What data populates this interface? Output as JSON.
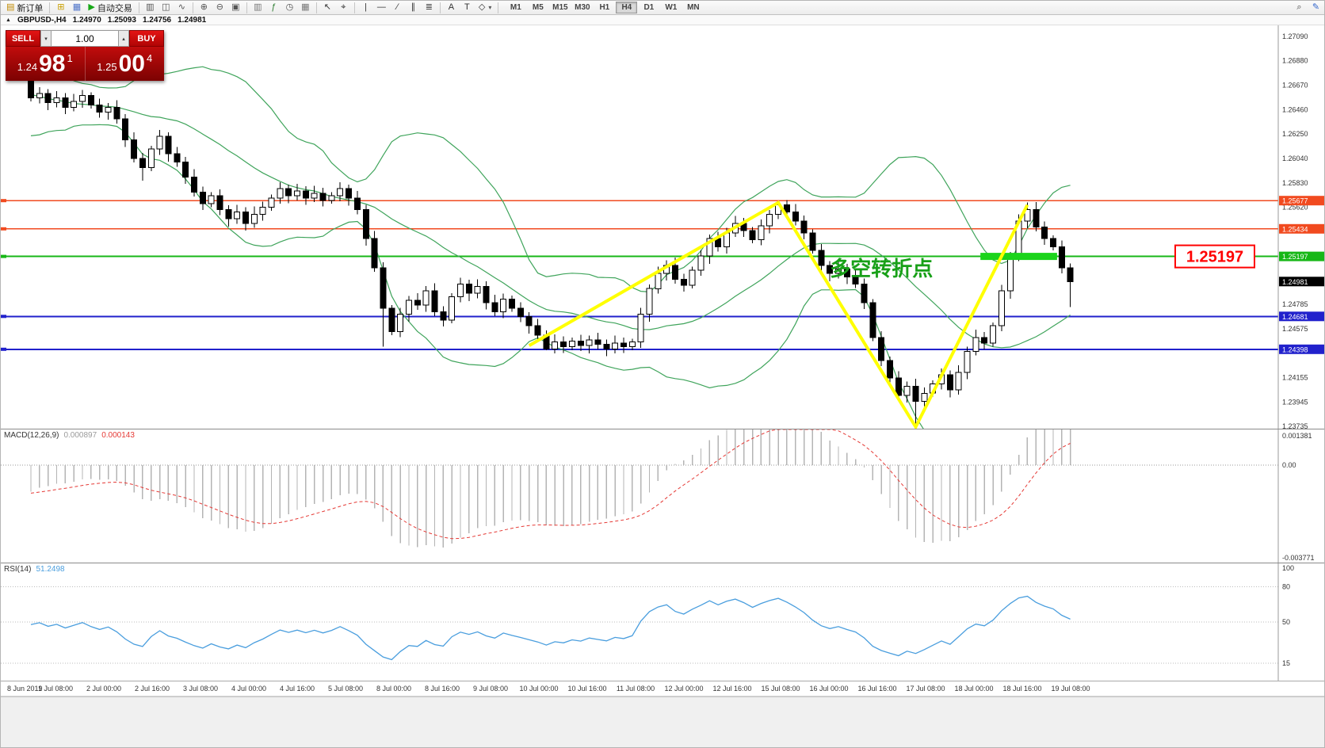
{
  "toolbar": {
    "groups": [
      {
        "items": [
          {
            "name": "new-order-button",
            "glyph": "▤",
            "glyph_color": "#c08a00",
            "label": "新订单"
          }
        ]
      },
      {
        "items": [
          {
            "name": "new-chart-button",
            "glyph": "⊞",
            "glyph_color": "#caa006"
          },
          {
            "name": "profiles-button",
            "glyph": "▦",
            "glyph_color": "#4f74c9"
          },
          {
            "name": "autotrading-button",
            "glyph": "▶",
            "glyph_color": "#17a817",
            "label": "自动交易"
          }
        ]
      },
      {
        "items": [
          {
            "name": "bar-chart-button",
            "glyph": "▥",
            "glyph_color": "#555555"
          },
          {
            "name": "candlestick-chart-button",
            "glyph": "◫",
            "glyph_color": "#555555"
          },
          {
            "name": "line-chart-button",
            "glyph": "∿",
            "glyph_color": "#555555"
          }
        ]
      },
      {
        "items": [
          {
            "name": "zoom-in-button",
            "glyph": "⊕",
            "glyph_color": "#555555"
          },
          {
            "name": "zoom-out-button",
            "glyph": "⊖",
            "glyph_color": "#555555"
          },
          {
            "name": "tile-windows-button",
            "glyph": "▣",
            "glyph_color": "#555555"
          }
        ]
      },
      {
        "items": [
          {
            "name": "navigator-button",
            "glyph": "▥",
            "glyph_color": "#777777"
          },
          {
            "name": "indicators-button",
            "glyph": "ƒ",
            "glyph_color": "#2e7d32"
          },
          {
            "name": "periods-button",
            "glyph": "◷",
            "glyph_color": "#555555"
          },
          {
            "name": "templates-button",
            "glyph": "▦",
            "glyph_color": "#777777"
          }
        ]
      },
      {
        "items": [
          {
            "name": "cursor-button",
            "glyph": "↖",
            "glyph_color": "#333333"
          },
          {
            "name": "crosshair-button",
            "glyph": "⌖",
            "glyph_color": "#333333"
          }
        ]
      },
      {
        "items": [
          {
            "name": "vertical-line-button",
            "glyph": "|",
            "glyph_color": "#333333"
          },
          {
            "name": "horizontal-line-button",
            "glyph": "—",
            "glyph_color": "#333333"
          },
          {
            "name": "trendline-button",
            "glyph": "∕",
            "glyph_color": "#333333"
          },
          {
            "name": "channel-button",
            "glyph": "∥",
            "glyph_color": "#333333"
          },
          {
            "name": "fibonacci-button",
            "glyph": "≣",
            "glyph_color": "#333333"
          }
        ]
      },
      {
        "items": [
          {
            "name": "text-button",
            "glyph": "A",
            "glyph_color": "#333333"
          },
          {
            "name": "label-button",
            "glyph": "T",
            "glyph_color": "#333333"
          },
          {
            "name": "arrows-button",
            "glyph": "◇",
            "glyph_color": "#333333",
            "dropdown": true
          }
        ]
      }
    ],
    "timeframes": [
      {
        "name": "tf-m1",
        "label": "M1"
      },
      {
        "name": "tf-m5",
        "label": "M5"
      },
      {
        "name": "tf-m15",
        "label": "M15"
      },
      {
        "name": "tf-m30",
        "label": "M30"
      },
      {
        "name": "tf-h1",
        "label": "H1"
      },
      {
        "name": "tf-h4",
        "label": "H4",
        "active": true
      },
      {
        "name": "tf-d1",
        "label": "D1"
      },
      {
        "name": "tf-w1",
        "label": "W1"
      },
      {
        "name": "tf-mn",
        "label": "MN"
      }
    ],
    "right_items": [
      {
        "name": "search-button",
        "glyph": "⌕",
        "glyph_color": "#444444"
      },
      {
        "name": "metaeditor-button",
        "glyph": "✎",
        "glyph_color": "#3366cc"
      }
    ]
  },
  "infobar": {
    "collapse_glyph": "▲",
    "symbol": "GBPUSD-,H4",
    "open": "1.24970",
    "high": "1.25093",
    "low": "1.24756",
    "close": "1.24981"
  },
  "trade_panel": {
    "sell_label": "SELL",
    "buy_label": "BUY",
    "volume": "1.00",
    "spin_down": "▾",
    "spin_up": "▴",
    "sell_price": {
      "prefix": "1.24",
      "big": "98",
      "sup": "1"
    },
    "buy_price": {
      "prefix": "1.25",
      "big": "00",
      "sup": "4"
    }
  },
  "chart_data": {
    "type": "candlestick",
    "symbol": "GBPUSD",
    "period": "H4",
    "main": {
      "price_axis": {
        "top": 1.27185,
        "bottom": 1.23715,
        "ticks": [
          "1.27090",
          "1.26880",
          "1.26670",
          "1.26460",
          "1.26250",
          "1.26040",
          "1.25830",
          "1.25620",
          "1.24785",
          "1.24575",
          "1.24155",
          "1.23945",
          "1.23735"
        ]
      },
      "candles": {
        "first_open": 1.2678,
        "history_closes": [
          1.269,
          1.2685,
          1.2695,
          1.268,
          1.2675,
          1.2685,
          1.267,
          1.266,
          1.2665,
          1.2655,
          1.265,
          1.266,
          1.2645,
          1.264,
          1.265,
          1.2635,
          1.264,
          1.263,
          1.2645,
          1.2655
        ],
        "closes": [
          1.2656,
          1.266,
          1.2652,
          1.2656,
          1.2648,
          1.2653,
          1.2658,
          1.265,
          1.2644,
          1.2648,
          1.2638,
          1.262,
          1.2604,
          1.2596,
          1.2612,
          1.2623,
          1.2608,
          1.2601,
          1.2588,
          1.2575,
          1.2565,
          1.2572,
          1.256,
          1.2552,
          1.2558,
          1.2548,
          1.2556,
          1.2562,
          1.257,
          1.2578,
          1.2572,
          1.2576,
          1.257,
          1.2574,
          1.2568,
          1.2572,
          1.2578,
          1.257,
          1.256,
          1.2535,
          1.251,
          1.2475,
          1.2455,
          1.247,
          1.2482,
          1.2478,
          1.249,
          1.2472,
          1.2465,
          1.2485,
          1.2496,
          1.2488,
          1.2494,
          1.248,
          1.2472,
          1.2483,
          1.2475,
          1.2468,
          1.246,
          1.2452,
          1.244,
          1.2446,
          1.2442,
          1.2447,
          1.2443,
          1.2448,
          1.2444,
          1.244,
          1.2445,
          1.2442,
          1.2446,
          1.247,
          1.2492,
          1.2505,
          1.2512,
          1.25,
          1.2495,
          1.2508,
          1.252,
          1.2535,
          1.2528,
          1.254,
          1.2548,
          1.2542,
          1.2534,
          1.2546,
          1.2556,
          1.2564,
          1.2558,
          1.255,
          1.254,
          1.2525,
          1.2512,
          1.2505,
          1.2509,
          1.2502,
          1.2496,
          1.248,
          1.245,
          1.243,
          1.2415,
          1.24,
          1.2408,
          1.2395,
          1.2402,
          1.241,
          1.2418,
          1.2405,
          1.242,
          1.2438,
          1.245,
          1.2445,
          1.246,
          1.249,
          1.252,
          1.255,
          1.256,
          1.2545,
          1.2535,
          1.2528,
          1.251,
          1.24981
        ],
        "spikes": {
          "13": {
            "low": 1.2585
          },
          "41": {
            "low": 1.2442
          },
          "60": {
            "low": 1.2439
          },
          "87": {
            "high": 1.2567
          },
          "103": {
            "low": 1.2376
          },
          "116": {
            "high": 1.2566
          },
          "121": {
            "low": 1.2476
          }
        }
      },
      "bollinger": {
        "period": 20,
        "deviation": 2,
        "color": "#3fa45b"
      },
      "hlines": [
        {
          "price": 1.25677,
          "color": "#f14a1f",
          "width": 1.5,
          "label": "1.25677"
        },
        {
          "price": 1.25434,
          "color": "#f14a1f",
          "width": 1.5,
          "label": "1.25434"
        },
        {
          "price": 1.25197,
          "color": "#17b717",
          "width": 2,
          "label": "1.25197"
        },
        {
          "price": 1.24681,
          "color": "#2121cc",
          "width": 2,
          "label": "1.24681"
        },
        {
          "price": 1.24398,
          "color": "#2121cc",
          "width": 2,
          "label": "1.24398"
        }
      ],
      "current_price": {
        "label": "1.24981",
        "color": "#000000"
      },
      "green_bar": {
        "from_idx": 111,
        "to_idx": 119,
        "price": 1.25197,
        "color": "#1bd41b",
        "height": 9
      },
      "zigzag": {
        "color": "#ffff00",
        "width": 4,
        "points": [
          [
            58,
            1.2443
          ],
          [
            87,
            1.2566
          ],
          [
            103,
            1.2373
          ],
          [
            116,
            1.2564
          ]
        ]
      },
      "annotation": {
        "text": "多空转折点",
        "color": "#18a018",
        "idx": 99,
        "price": 1.2503,
        "size": 26
      },
      "callout": {
        "text": "1.25197",
        "color": "#ff0000"
      }
    },
    "macd": {
      "title": "MACD(12,26,9)",
      "value_main": "0.000897",
      "value_signal": "0.000143",
      "fast": 12,
      "slow": 26,
      "signal": 9,
      "bar_color": "#b4b4b4",
      "signal_color": "#e53935",
      "axis": {
        "top": 0.001381,
        "bottom": -0.003771,
        "top_label": "0.001381",
        "zero_label": "0.00",
        "bottom_label": "-0.003771"
      }
    },
    "rsi": {
      "title": "RSI(14)",
      "value": "51.2498",
      "period": 14,
      "color": "#4a9ede",
      "levels": [
        {
          "label": "100",
          "value": 100,
          "line": false
        },
        {
          "label": "80",
          "value": 80,
          "line": true
        },
        {
          "label": "50",
          "value": 50,
          "line": true
        },
        {
          "label": "15",
          "value": 15,
          "line": true
        }
      ]
    },
    "time_axis": {
      "labels": [
        "8 Jun 2019",
        "1 Jul 08:00",
        "2 Jul 00:00",
        "2 Jul 16:00",
        "3 Jul 08:00",
        "4 Jul 00:00",
        "4 Jul 16:00",
        "5 Jul 08:00",
        "8 Jul 00:00",
        "8 Jul 16:00",
        "9 Jul 08:00",
        "10 Jul 00:00",
        "10 Jul 16:00",
        "11 Jul 08:00",
        "12 Jul 00:00",
        "12 Jul 16:00",
        "15 Jul 08:00",
        "16 Jul 00:00",
        "16 Jul 16:00",
        "17 Jul 08:00",
        "18 Jul 00:00",
        "18 Jul 16:00",
        "19 Jul 08:00"
      ]
    }
  }
}
